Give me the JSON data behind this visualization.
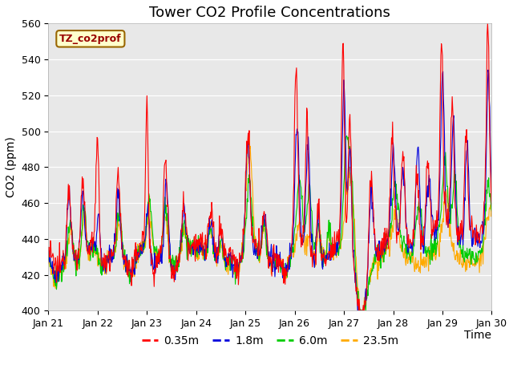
{
  "title": "Tower CO2 Profile Concentrations",
  "xlabel": "Time",
  "ylabel": "CO2 (ppm)",
  "ylim": [
    400,
    560
  ],
  "xlim_days": [
    0,
    9
  ],
  "x_tick_labels": [
    "Jan 21",
    "Jan 22",
    "Jan 23",
    "Jan 24",
    "Jan 25",
    "Jan 26",
    "Jan 27",
    "Jan 28",
    "Jan 29",
    "Jan 30"
  ],
  "annotation_text": "TZ_co2prof",
  "annotation_bg": "#ffffcc",
  "annotation_border": "#996600",
  "line_colors": [
    "#ff0000",
    "#0000dd",
    "#00cc00",
    "#ffaa00"
  ],
  "line_labels": [
    "0.35m",
    "1.8m",
    "6.0m",
    "23.5m"
  ],
  "fig_bg": "#ffffff",
  "plot_bg": "#e8e8e8",
  "grid_color": "#ffffff",
  "title_fontsize": 13,
  "axis_fontsize": 10,
  "tick_fontsize": 9,
  "legend_fontsize": 10
}
